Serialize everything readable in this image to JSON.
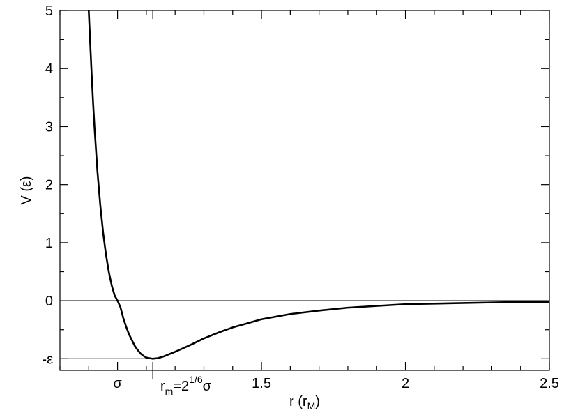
{
  "chart_data": {
    "type": "line",
    "xlabel": "r (r",
    "xlabel_sub": "M",
    "xlabel_end": ")",
    "ylabel": "V (ε)",
    "xlim": [
      0.8,
      2.5
    ],
    "ylim": [
      -1.2,
      5
    ],
    "grid": false,
    "x_ticks": [
      {
        "value": 1.0,
        "label": "σ"
      },
      {
        "value": 1.12246,
        "label": "r"
      },
      {
        "value": 1.5,
        "label": "1.5"
      },
      {
        "value": 2.0,
        "label": "2"
      },
      {
        "value": 2.5,
        "label": "2.5"
      }
    ],
    "x_minor_ticks": [
      0.8,
      0.9,
      1.1,
      1.2,
      1.3,
      1.4,
      1.6,
      1.7,
      1.8,
      1.9,
      2.1,
      2.2,
      2.3,
      2.4
    ],
    "rm_label": {
      "base": "r",
      "sub": "m",
      "mid": "=2",
      "sup": "1/6",
      "end": "σ"
    },
    "y_ticks": [
      {
        "value": -1,
        "label": "-ε"
      },
      {
        "value": 0,
        "label": "0"
      },
      {
        "value": 1,
        "label": "1"
      },
      {
        "value": 2,
        "label": "2"
      },
      {
        "value": 3,
        "label": "3"
      },
      {
        "value": 4,
        "label": "4"
      },
      {
        "value": 5,
        "label": "5"
      }
    ],
    "y_minor_ticks": [
      -0.5,
      0.5,
      1.5,
      2.5,
      3.5,
      4.5
    ],
    "reference_lines": [
      {
        "axis": "y",
        "value": 0,
        "x_from": 0.8,
        "x_to": 2.5
      },
      {
        "axis": "y",
        "value": -1,
        "x_from": 0.8,
        "x_to": 1.12246
      }
    ],
    "series": [
      {
        "function": "lennard-jones",
        "epsilon": 1,
        "sigma": 1,
        "x": [
          0.9,
          0.905,
          0.91,
          0.915,
          0.92,
          0.93,
          0.94,
          0.95,
          0.96,
          0.97,
          0.98,
          0.99,
          1.0,
          1.01,
          1.02,
          1.03,
          1.04,
          1.05,
          1.06,
          1.07,
          1.08,
          1.09,
          1.1,
          1.11,
          1.12246,
          1.14,
          1.16,
          1.18,
          1.2,
          1.25,
          1.3,
          1.35,
          1.4,
          1.45,
          1.5,
          1.6,
          1.7,
          1.8,
          1.9,
          2.0,
          2.1,
          2.2,
          2.3,
          2.4,
          2.5
        ],
        "y": [
          5.06,
          4.45,
          3.91,
          3.42,
          2.99,
          2.24,
          1.65,
          1.17,
          0.79,
          0.49,
          0.26,
          0.09,
          0.0,
          -0.11,
          -0.3,
          -0.45,
          -0.58,
          -0.68,
          -0.78,
          -0.85,
          -0.91,
          -0.95,
          -0.98,
          -0.99,
          -1.0,
          -0.99,
          -0.96,
          -0.92,
          -0.88,
          -0.77,
          -0.65,
          -0.55,
          -0.46,
          -0.39,
          -0.32,
          -0.23,
          -0.17,
          -0.12,
          -0.09,
          -0.06,
          -0.05,
          -0.04,
          -0.03,
          -0.02,
          -0.02
        ],
        "color": "#000000"
      }
    ]
  }
}
